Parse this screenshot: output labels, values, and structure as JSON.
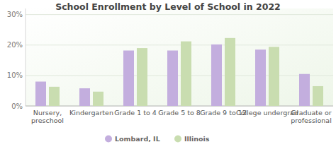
{
  "chart_data": {
    "type": "bar",
    "title": "School Enrollment by Level of School in 2022",
    "categories": [
      "Nursery, preschool",
      "Kindergarten",
      "Grade 1 to 4",
      "Grade 5 to 8",
      "Grade 9 to 12",
      "College undergrad",
      "Graduate or professional"
    ],
    "series": [
      {
        "name": "Lombard, IL",
        "color": "#c3aede",
        "values": [
          8.0,
          5.8,
          18.2,
          18.2,
          20.2,
          18.5,
          10.5
        ]
      },
      {
        "name": "Illinois",
        "color": "#c9ddb0",
        "values": [
          6.3,
          4.7,
          19.0,
          21.2,
          22.3,
          19.4,
          6.5
        ]
      }
    ],
    "ylim": [
      0,
      32
    ],
    "yticks": [
      {
        "value": 0,
        "label": "0%"
      },
      {
        "value": 10,
        "label": "10%"
      },
      {
        "value": 20,
        "label": "20%"
      },
      {
        "value": 30,
        "label": "30%"
      }
    ],
    "grid": true,
    "legend": "bottom"
  }
}
